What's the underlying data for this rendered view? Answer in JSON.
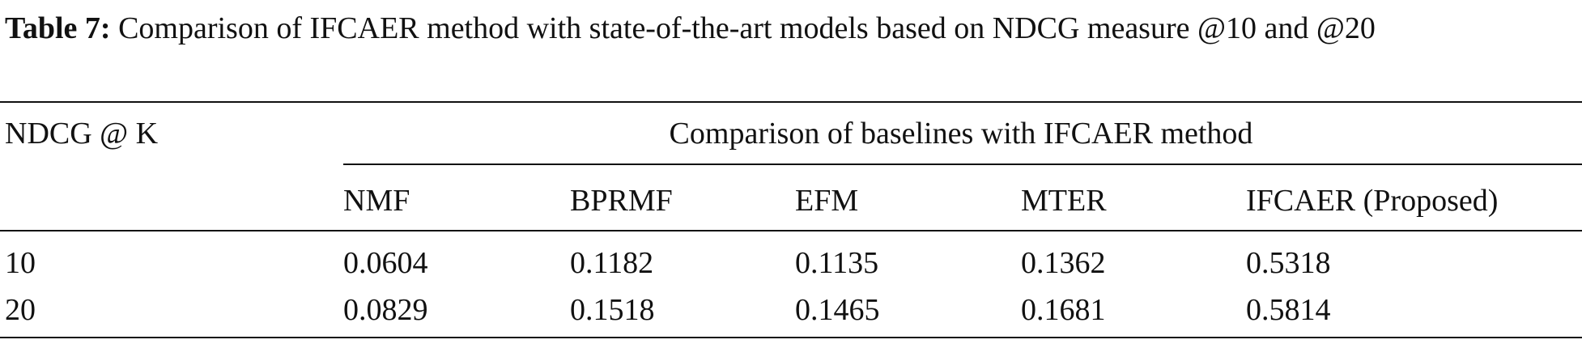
{
  "caption": {
    "label": "Table 7:",
    "text": "Comparison of IFCAER method with state-of-the-art models based on NDCG measure @10 and @20"
  },
  "table": {
    "row_header": "NDCG @ K",
    "group_header": "Comparison of baselines with IFCAER method",
    "columns": [
      "NMF",
      "BPRMF",
      "EFM",
      "MTER",
      "IFCAER (Proposed)"
    ],
    "rows": [
      [
        "10",
        "0.0604",
        "0.1182",
        "0.1135",
        "0.1362",
        "0.5318"
      ],
      [
        "20",
        "0.0829",
        "0.1518",
        "0.1465",
        "0.1681",
        "0.5814"
      ]
    ]
  }
}
